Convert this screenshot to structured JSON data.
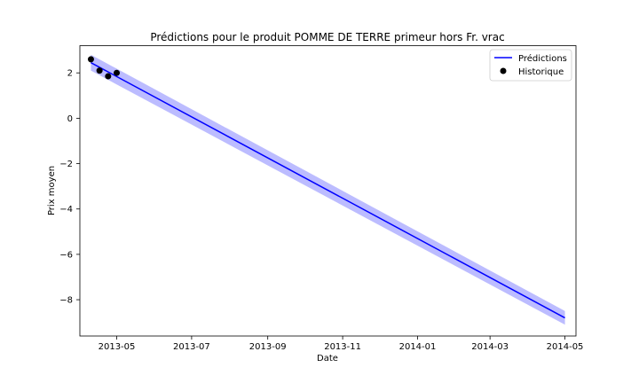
{
  "chart_data": {
    "type": "line",
    "title": "Prédictions pour le produit POMME DE TERRE primeur hors Fr. vrac",
    "xlabel": "Date",
    "ylabel": "Prix moyen",
    "xlim": [
      "2013-04-01",
      "2014-05-10"
    ],
    "ylim": [
      -9.6,
      3.2
    ],
    "x_ticks": [
      "2013-05",
      "2013-07",
      "2013-09",
      "2013-11",
      "2014-01",
      "2014-03",
      "2014-05"
    ],
    "y_ticks": [
      2,
      0,
      -2,
      -4,
      -6,
      -8
    ],
    "y_tick_labels": [
      "2",
      "0",
      "−2",
      "−4",
      "−6",
      "−8"
    ],
    "legend_position": "top-right",
    "grid": false,
    "series": [
      {
        "name": "Prédictions",
        "kind": "line",
        "color": "#0000ff",
        "x": [
          "2013-04-10",
          "2014-05-01"
        ],
        "y": [
          2.45,
          -8.8
        ]
      },
      {
        "name": "Historique",
        "kind": "scatter",
        "color": "#000000",
        "x": [
          "2013-04-10",
          "2013-04-17",
          "2013-04-24",
          "2013-05-01"
        ],
        "y": [
          2.6,
          2.1,
          1.85,
          2.0
        ]
      }
    ],
    "confidence_band": {
      "color": "#b0b0ff",
      "x": [
        "2013-04-10",
        "2014-05-01"
      ],
      "lower": [
        2.1,
        -9.1
      ],
      "upper": [
        2.8,
        -8.5
      ]
    }
  }
}
